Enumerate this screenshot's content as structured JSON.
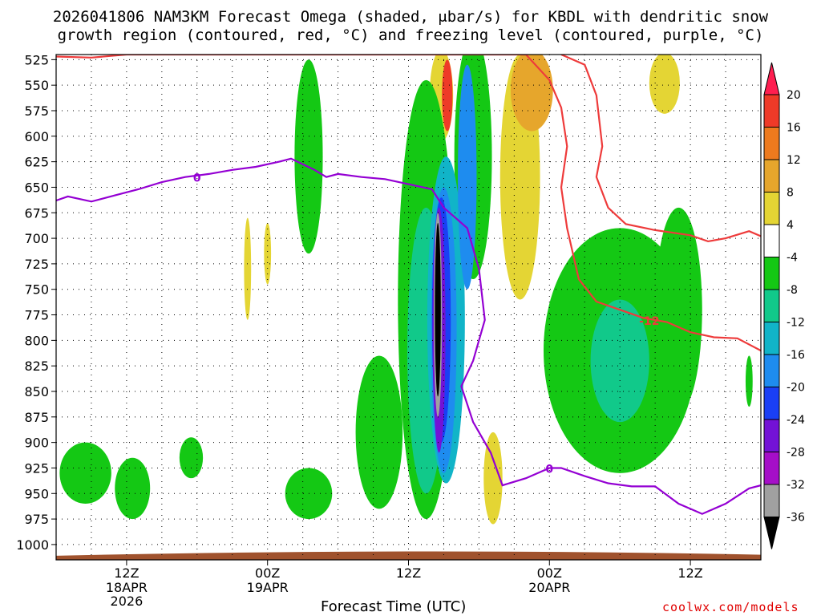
{
  "title_line1": "2026041806 NAM3KM Forecast Omega (shaded, μbar/s) for KBDL with dendritic snow",
  "title_line2": "growth region (contoured, red, °C) and freezing level (contoured, purple, °C)",
  "credit": "coolwx.com/models",
  "chart_data": {
    "type": "heatmap",
    "title": "2026041806 NAM3KM Forecast Omega (shaded, μbar/s) for KBDL with dendritic snow growth region (contoured, red, °C) and freezing level (contoured, purple, °C)",
    "xlabel": "Forecast Time (UTC)",
    "ylabel": "",
    "x_range_hours": [
      0,
      60
    ],
    "x_ticks": [
      {
        "hour": 6,
        "label": "12Z",
        "sub": [
          "18APR",
          "2026"
        ]
      },
      {
        "hour": 18,
        "label": "00Z",
        "sub": [
          "19APR"
        ]
      },
      {
        "hour": 30,
        "label": "12Z",
        "sub": []
      },
      {
        "hour": 42,
        "label": "00Z",
        "sub": [
          "20APR"
        ]
      },
      {
        "hour": 54,
        "label": "12Z",
        "sub": []
      }
    ],
    "y_range_hpa": [
      1015,
      520
    ],
    "y_ticks": [
      525,
      550,
      575,
      600,
      625,
      650,
      675,
      700,
      725,
      750,
      775,
      800,
      825,
      850,
      875,
      900,
      925,
      950,
      975,
      1000
    ],
    "grid": true,
    "colorbar": {
      "labels": [
        "20",
        "16",
        "12",
        "8",
        "4",
        "-4",
        "-8",
        "-12",
        "-16",
        "-20",
        "-24",
        "-28",
        "-32",
        "-36"
      ],
      "colors": [
        "#ff1e50",
        "#ee3a28",
        "#ed7a1e",
        "#e6a62c",
        "#e4d534",
        "#ffffff",
        "#14c814",
        "#11c98a",
        "#11b4c8",
        "#1e8cef",
        "#1a3ff5",
        "#7312d6",
        "#a50ec8",
        "#a0a0a0",
        "#000000"
      ]
    },
    "freezing_level_label": "0",
    "freezing_level_0C_hpa": [
      {
        "hour": 0,
        "p": 663
      },
      {
        "hour": 1,
        "p": 659
      },
      {
        "hour": 3,
        "p": 664
      },
      {
        "hour": 5,
        "p": 658
      },
      {
        "hour": 7,
        "p": 652
      },
      {
        "hour": 9,
        "p": 645
      },
      {
        "hour": 11,
        "p": 640
      },
      {
        "hour": 13,
        "p": 637
      },
      {
        "hour": 15,
        "p": 633
      },
      {
        "hour": 17,
        "p": 630
      },
      {
        "hour": 19,
        "p": 625
      },
      {
        "hour": 20,
        "p": 622
      },
      {
        "hour": 22,
        "p": 633
      },
      {
        "hour": 23,
        "p": 640
      },
      {
        "hour": 24,
        "p": 637
      },
      {
        "hour": 26,
        "p": 640
      },
      {
        "hour": 28,
        "p": 642
      },
      {
        "hour": 30,
        "p": 647
      },
      {
        "hour": 32,
        "p": 652
      },
      {
        "hour": 33,
        "p": 670
      },
      {
        "hour": 34,
        "p": 680
      },
      {
        "hour": 35,
        "p": 690
      },
      {
        "hour": 36,
        "p": 730
      },
      {
        "hour": 36.5,
        "p": 780
      },
      {
        "hour": 35.5,
        "p": 820
      },
      {
        "hour": 34.5,
        "p": 845
      },
      {
        "hour": 35.5,
        "p": 880
      },
      {
        "hour": 37,
        "p": 910
      },
      {
        "hour": 38,
        "p": 942
      },
      {
        "hour": 40,
        "p": 935
      },
      {
        "hour": 42,
        "p": 925
      },
      {
        "hour": 43,
        "p": 925
      },
      {
        "hour": 45,
        "p": 933
      },
      {
        "hour": 47,
        "p": 940
      },
      {
        "hour": 49,
        "p": 943
      },
      {
        "hour": 51,
        "p": 943
      },
      {
        "hour": 53,
        "p": 960
      },
      {
        "hour": 55,
        "p": 970
      },
      {
        "hour": 57,
        "p": 960
      },
      {
        "hour": 59,
        "p": 945
      },
      {
        "hour": 60,
        "p": 942
      }
    ],
    "dgz_label": "-12",
    "dgz_minus12C_upper_hpa": [
      {
        "hour": 0,
        "p": 522
      },
      {
        "hour": 3,
        "p": 523
      },
      {
        "hour": 6,
        "p": 520
      },
      {
        "hour": 40,
        "p": 520
      },
      {
        "hour": 42,
        "p": 545
      },
      {
        "hour": 43,
        "p": 572
      },
      {
        "hour": 43.5,
        "p": 610
      },
      {
        "hour": 43,
        "p": 650
      },
      {
        "hour": 43.5,
        "p": 690
      },
      {
        "hour": 44.5,
        "p": 740
      },
      {
        "hour": 46,
        "p": 762
      },
      {
        "hour": 48,
        "p": 770
      },
      {
        "hour": 50,
        "p": 778
      },
      {
        "hour": 52,
        "p": 782
      },
      {
        "hour": 54,
        "p": 792
      },
      {
        "hour": 56,
        "p": 797
      },
      {
        "hour": 58,
        "p": 798
      },
      {
        "hour": 60,
        "p": 810
      }
    ],
    "dgz_minus12C_lower_hpa": [
      {
        "hour": 43,
        "p": 520
      },
      {
        "hour": 45,
        "p": 530
      },
      {
        "hour": 46,
        "p": 560
      },
      {
        "hour": 46.5,
        "p": 610
      },
      {
        "hour": 46,
        "p": 640
      },
      {
        "hour": 47,
        "p": 670
      },
      {
        "hour": 48.5,
        "p": 686
      },
      {
        "hour": 51,
        "p": 692
      },
      {
        "hour": 54,
        "p": 697
      },
      {
        "hour": 55.5,
        "p": 703
      },
      {
        "hour": 57,
        "p": 700
      },
      {
        "hour": 59,
        "p": 693
      },
      {
        "hour": 60,
        "p": 698
      }
    ],
    "omega_regions": [
      {
        "value_band": "4 to 8",
        "approx": "upward-positive patches near 30 hrs 530-600 hPa, 38-40 hrs 520-760 hPa, 51-53 hrs 525-575 hPa, 16 hrs 690-780 hPa, 37 hrs 900-980 hPa"
      },
      {
        "value_band": "-4 to -8",
        "approx": "broad ascent 19-37 hrs 560-990 hPa; 42-55 hrs 680-960 hPa; 0-12 hrs 900-970 hPa"
      },
      {
        "value_band": "-8 to -32",
        "approx": "strong core 31-35 hrs 640-950 hPa"
      },
      {
        "value_band": "< -36",
        "approx": "maximum core near 32.5 hrs 680-870 hPa"
      }
    ]
  }
}
